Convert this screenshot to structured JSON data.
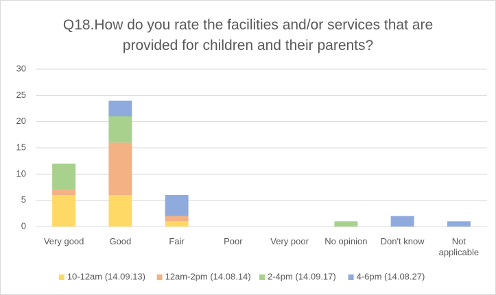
{
  "chart_data": {
    "type": "stacked_bar",
    "title": "Q18.How do you rate the facilities and/or services that are provided for children and their parents?",
    "categories": [
      "Very good",
      "Good",
      "Fair",
      "Poor",
      "Very poor",
      "No opinion",
      "Don't know",
      "Not applicable"
    ],
    "series": [
      {
        "name": "10-12am (14.09.13)",
        "color": "#ffd966",
        "values": [
          6,
          6,
          1,
          0,
          0,
          0,
          0,
          0
        ]
      },
      {
        "name": "12am-2pm (14.08.14)",
        "color": "#f4b183",
        "values": [
          1,
          10,
          1,
          0,
          0,
          0,
          0,
          0
        ]
      },
      {
        "name": "2-4pm (14.09.17)",
        "color": "#a9d18e",
        "values": [
          5,
          5,
          0,
          0,
          0,
          1,
          0,
          0
        ]
      },
      {
        "name": "4-6pm (14.08.27)",
        "color": "#8faadc",
        "values": [
          0,
          3,
          4,
          0,
          0,
          0,
          2,
          1
        ]
      }
    ],
    "ylim": [
      0,
      30
    ],
    "yticks": [
      0,
      5,
      10,
      15,
      20,
      25,
      30
    ],
    "grid": true,
    "legend": "bottom"
  }
}
